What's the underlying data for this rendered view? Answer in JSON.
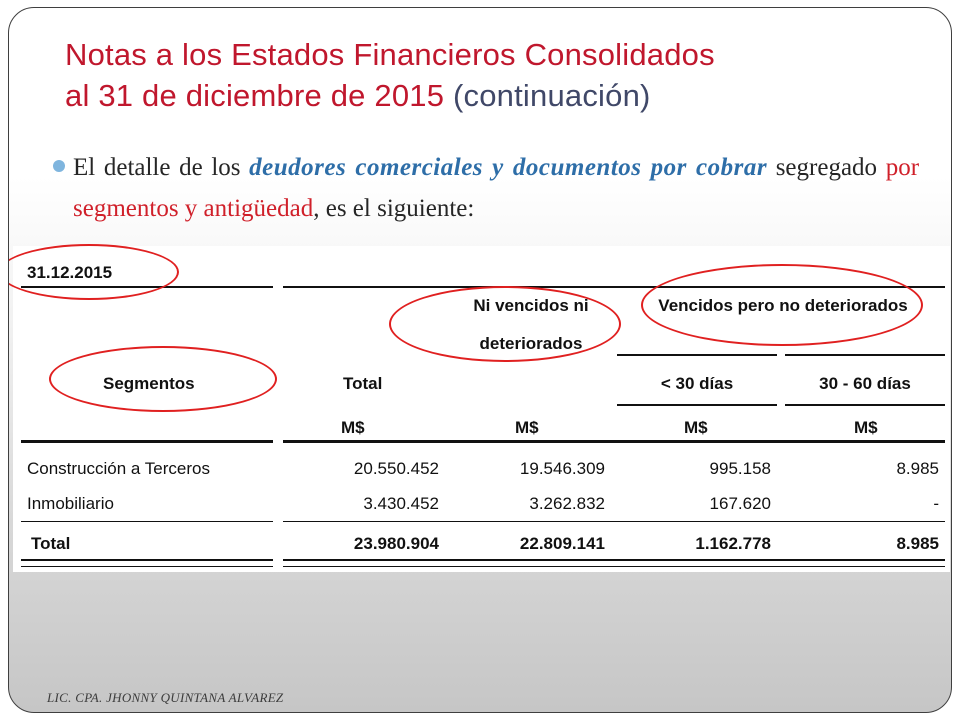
{
  "slide": {
    "title_line1": "Notas a los Estados Financieros Consolidados",
    "title_line2_a": "al 31 de diciembre de 2015",
    "title_line2_b": "(continuación)",
    "bullet": {
      "p1": "El detalle de los ",
      "em1": "deudores comerciales y documentos por cobrar",
      "p2": " segregado ",
      "em2": "por segmentos y antigüedad",
      "p3": ", es el siguiente:"
    },
    "footer": "LIC. CPA. JHONNY QUINTANA ALVAREZ"
  },
  "table": {
    "date": "31.12.2015",
    "headers": {
      "segmentos": "Segmentos",
      "total": "Total",
      "ni_vencidos_1": "Ni vencidos ni",
      "ni_vencidos_2": "deteriorados",
      "vencidos": "Vencidos pero no deteriorados",
      "lt30": "< 30 días",
      "d30_60": "30 - 60 días",
      "currency": "M$"
    },
    "rows": [
      {
        "segment": "Construcción a Terceros",
        "total": "20.550.452",
        "ni_vencidos": "19.546.309",
        "lt30": "995.158",
        "d30_60": "8.985"
      },
      {
        "segment": "Inmobiliario",
        "total": "3.430.452",
        "ni_vencidos": "3.262.832",
        "lt30": "167.620",
        "d30_60": "-"
      }
    ],
    "total_row": {
      "segment": "Total",
      "total": "23.980.904",
      "ni_vencidos": "22.809.141",
      "lt30": "1.162.778",
      "d30_60": "8.985"
    }
  },
  "colors": {
    "title": "#c0172d",
    "highlight_blue": "#2e6ea8",
    "highlight_red": "#d0202a",
    "annotation_circle": "#e02020"
  }
}
